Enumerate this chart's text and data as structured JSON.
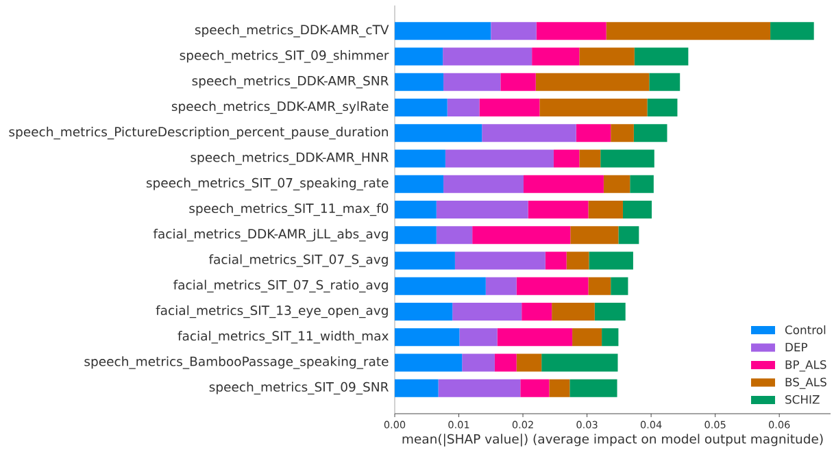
{
  "chart_data": {
    "type": "bar",
    "orientation": "horizontal",
    "stacked": true,
    "categories": [
      "speech_metrics_DDK-AMR_cTV",
      "speech_metrics_SIT_09_shimmer",
      "speech_metrics_DDK-AMR_SNR",
      "speech_metrics_DDK-AMR_sylRate",
      "speech_metrics_PictureDescription_percent_pause_duration",
      "speech_metrics_DDK-AMR_HNR",
      "speech_metrics_SIT_07_speaking_rate",
      "speech_metrics_SIT_11_max_f0",
      "facial_metrics_DDK-AMR_jLL_abs_avg",
      "facial_metrics_SIT_07_S_avg",
      "facial_metrics_SIT_07_S_ratio_avg",
      "facial_metrics_SIT_13_eye_open_avg",
      "facial_metrics_SIT_11_width_max",
      "speech_metrics_BambooPassage_speaking_rate",
      "speech_metrics_SIT_09_SNR"
    ],
    "series": [
      {
        "name": "Control",
        "color": "#008bfb",
        "values": [
          0.015,
          0.0075,
          0.0076,
          0.0082,
          0.0136,
          0.0079,
          0.0076,
          0.0065,
          0.0065,
          0.0094,
          0.0142,
          0.009,
          0.0101,
          0.0105,
          0.0068
        ]
      },
      {
        "name": "DEP",
        "color": "#a262e6",
        "values": [
          0.0071,
          0.0139,
          0.0089,
          0.005,
          0.0147,
          0.0169,
          0.0125,
          0.0143,
          0.0056,
          0.0141,
          0.0048,
          0.0108,
          0.0059,
          0.0051,
          0.0128
        ]
      },
      {
        "name": "BP_ALS",
        "color": "#ff008e",
        "values": [
          0.0109,
          0.0074,
          0.0055,
          0.0094,
          0.0054,
          0.004,
          0.0125,
          0.0094,
          0.0153,
          0.0033,
          0.0112,
          0.0047,
          0.0117,
          0.0034,
          0.0045
        ]
      },
      {
        "name": "BS_ALS",
        "color": "#c46a00",
        "values": [
          0.0256,
          0.0086,
          0.0177,
          0.0168,
          0.0036,
          0.0033,
          0.0041,
          0.0054,
          0.0075,
          0.0035,
          0.0035,
          0.0067,
          0.0046,
          0.0039,
          0.0032
        ]
      },
      {
        "name": "SCHIZ",
        "color": "#009b62",
        "values": [
          0.0068,
          0.0084,
          0.0048,
          0.0047,
          0.0052,
          0.0084,
          0.0037,
          0.0045,
          0.0032,
          0.0069,
          0.0027,
          0.0048,
          0.0026,
          0.0119,
          0.0074
        ]
      }
    ],
    "xlabel": "mean(|SHAP value|) (average impact on model output magnitude)",
    "xlim": [
      0,
      0.068
    ],
    "xticks": [
      {
        "value": 0,
        "label": "0.00"
      },
      {
        "value": 0.01,
        "label": "0.01"
      },
      {
        "value": 0.02,
        "label": "0.02"
      },
      {
        "value": 0.03,
        "label": "0.03"
      },
      {
        "value": 0.04,
        "label": "0.04"
      },
      {
        "value": 0.05,
        "label": "0.05"
      },
      {
        "value": 0.06,
        "label": "0.06"
      }
    ],
    "legend": "bottom right"
  }
}
